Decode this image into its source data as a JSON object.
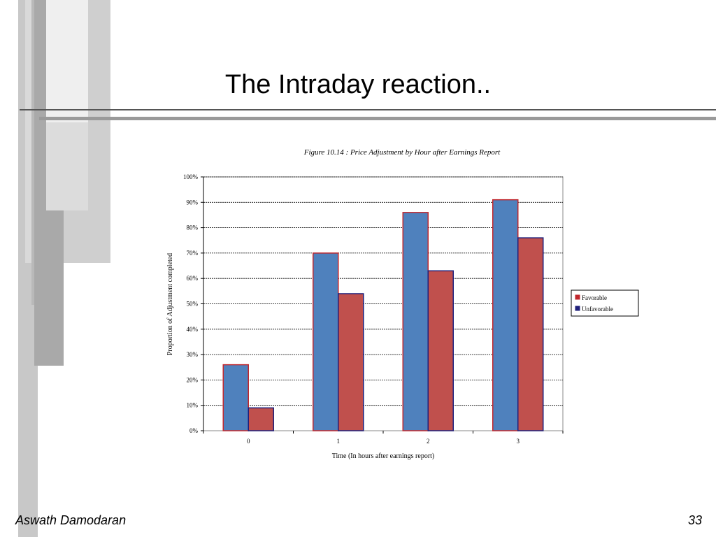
{
  "slide": {
    "title": "The Intraday reaction..",
    "footer_author": "Aswath Damodaran",
    "page_number": "33"
  },
  "colors": {
    "favorable_fill": "#4f81bd",
    "favorable_border": "#c0272d",
    "unfavorable_fill": "#c0504d",
    "unfavorable_border": "#1f1f7a"
  },
  "chart_data": {
    "type": "bar",
    "title": "Figure 10.14 : Price Adjustment by Hour after Earnings Report",
    "xlabel": "Time (In hours after earnings report)",
    "ylabel": "Proportion of Adjustment completed",
    "categories": [
      "0",
      "1",
      "2",
      "3"
    ],
    "yticks": [
      "0%",
      "10%",
      "20%",
      "30%",
      "40%",
      "50%",
      "60%",
      "70%",
      "80%",
      "90%",
      "100%"
    ],
    "ylim": [
      0,
      100
    ],
    "grid": true,
    "legend_position": "right",
    "series": [
      {
        "name": "Favorable",
        "values": [
          26,
          70,
          86,
          91
        ]
      },
      {
        "name": "Unfavorable",
        "values": [
          9,
          54,
          63,
          76
        ]
      }
    ]
  }
}
